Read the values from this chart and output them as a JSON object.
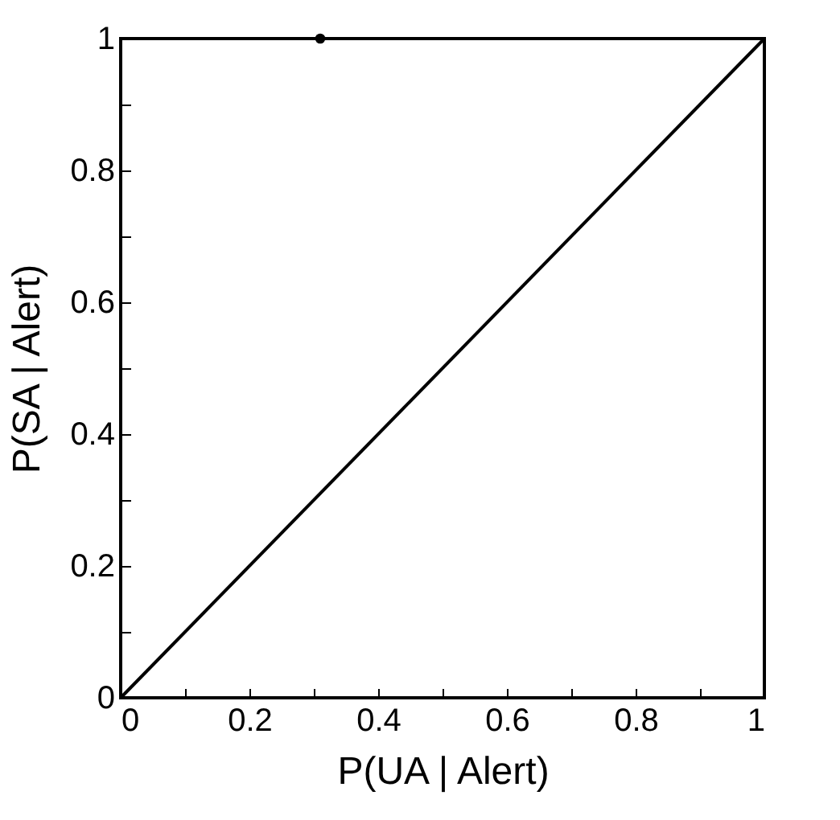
{
  "chart_data": {
    "type": "line",
    "xlabel": "P(UA | Alert)",
    "ylabel": "P(SA | Alert)",
    "xlim": [
      0,
      1
    ],
    "ylim": [
      0,
      1
    ],
    "xticks": [
      0,
      {
        "value": 0.1,
        "label": null
      },
      0.2,
      {
        "value": 0.3,
        "label": null
      },
      0.4,
      {
        "value": 0.5,
        "label": null
      },
      0.6,
      {
        "value": 0.7,
        "label": null
      },
      0.8,
      {
        "value": 0.9,
        "label": null
      },
      1
    ],
    "yticks": [
      0,
      {
        "value": 0.1,
        "label": null
      },
      0.2,
      {
        "value": 0.3,
        "label": null
      },
      0.4,
      {
        "value": 0.5,
        "label": null
      },
      0.6,
      {
        "value": 0.7,
        "label": null
      },
      0.8,
      {
        "value": 0.9,
        "label": null
      },
      1
    ],
    "grid": false,
    "series": [
      {
        "color": "#000000",
        "x": [
          0,
          1
        ],
        "values": [
          0,
          1
        ],
        "marker": "none"
      },
      {
        "type": "scatter",
        "color": "#000000",
        "x": [
          0.31
        ],
        "values": [
          1
        ],
        "marker": "circle"
      }
    ]
  }
}
